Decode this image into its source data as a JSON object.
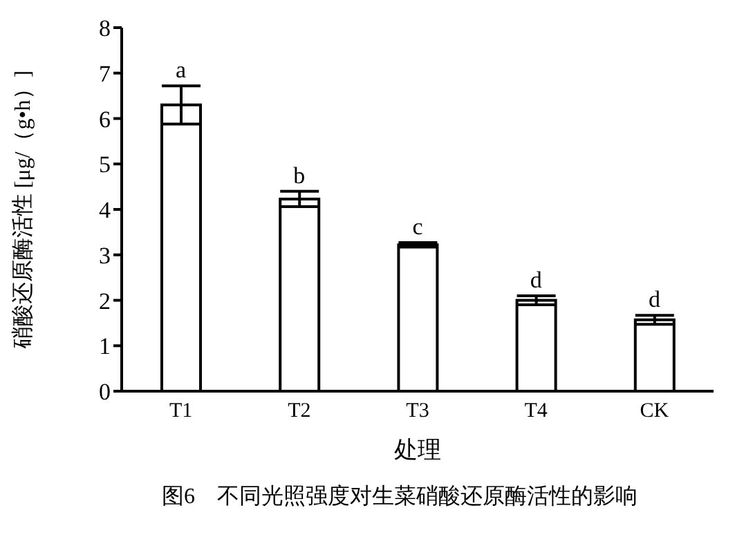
{
  "chart_data": {
    "type": "bar",
    "title": "图6　不同光照强度对生菜硝酸还原酶活性的影响",
    "xlabel": "处理",
    "ylabel": "硝酸还原酶活性 [μg/（g•h）]",
    "categories": [
      "T1",
      "T2",
      "T3",
      "T4",
      "CK"
    ],
    "values": [
      6.3,
      4.23,
      3.22,
      2.0,
      1.57
    ],
    "errors": [
      0.42,
      0.17,
      0.05,
      0.1,
      0.1
    ],
    "color": "#ffffff",
    "ylim": [
      0,
      8
    ],
    "yticks": [
      0,
      1,
      2,
      3,
      4,
      5,
      6,
      7,
      8
    ],
    "grid": false,
    "legend": false,
    "annotations": [
      {
        "text": "a",
        "x": "T1",
        "y": 6.72
      },
      {
        "text": "b",
        "x": "T2",
        "y": 4.4
      },
      {
        "text": "c",
        "x": "T3",
        "y": 3.27
      },
      {
        "text": "d",
        "x": "T4",
        "y": 2.1
      },
      {
        "text": "d",
        "x": "CK",
        "y": 1.67
      }
    ]
  }
}
